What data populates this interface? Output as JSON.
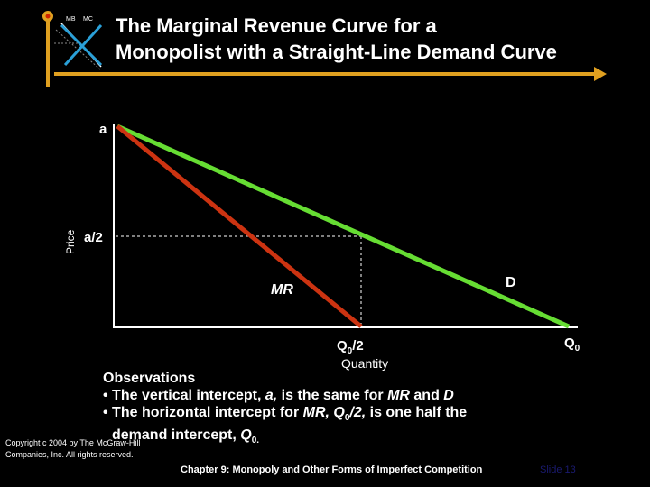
{
  "logo": {
    "mb": "MB",
    "mc": "MC",
    "accent": "#e0a020"
  },
  "title": {
    "line1": "The Marginal Revenue Curve for a",
    "line2": "Monopolist with a Straight-Line Demand Curve"
  },
  "diagram": {
    "axis_y_label": "Price",
    "label_a": "a",
    "label_a_half": "a/2",
    "label_mr": "MR",
    "label_d": "D",
    "label_q0_half_base": "Q",
    "label_q0_half_sub": "0",
    "label_q0_half_tail": "/2",
    "label_q0_base": "Q",
    "label_q0_sub": "0",
    "axis_x_label": "Quantity",
    "colors": {
      "demand": "#66dd33",
      "mr": "#cc3311",
      "axis": "#ffffff",
      "guide": "#ffffff"
    }
  },
  "observations": {
    "heading": "Observations",
    "line1_a": "• The vertical intercept, ",
    "line1_b": "a,",
    "line1_c": " is the same for ",
    "line1_d": "MR",
    "line1_e": " and ",
    "line1_f": "D",
    "line2_a": "• The horizontal intercept for ",
    "line2_b": "MR, Q",
    "line2_sub": "0",
    "line2_c": "/2,",
    "line2_d": " is one half the",
    "line3_a": "demand intercept, ",
    "line3_b": "Q",
    "line3_sub": "0.",
    "line3_c": ""
  },
  "footer": {
    "copyright_line1": "Copyright c 2004 by The McGraw-Hill",
    "copyright_line2": "Companies, Inc. All rights reserved.",
    "chapter": "Chapter 9: Monopoly and Other Forms of Imperfect Competition",
    "slide": "Slide 13"
  }
}
